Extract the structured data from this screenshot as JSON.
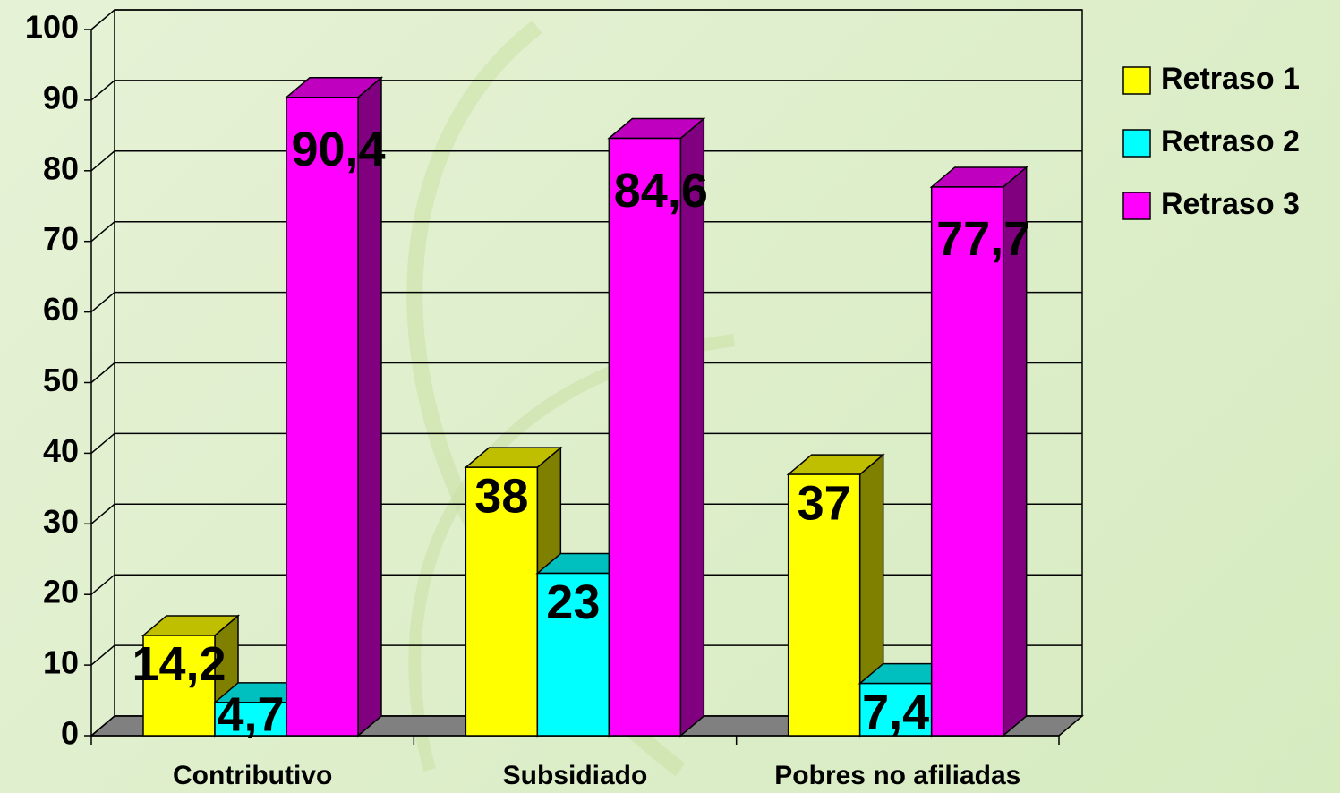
{
  "chart_data": {
    "type": "bar3d",
    "categories": [
      "Contributivo",
      "Subsidiado",
      "Pobres no afiliadas"
    ],
    "series": [
      {
        "name": "Retraso 1",
        "color": "#ffff00",
        "values": [
          14.2,
          38,
          37
        ],
        "value_labels": [
          "14,2",
          "38",
          "37"
        ]
      },
      {
        "name": "Retraso 2",
        "color": "#00ffff",
        "values": [
          4.7,
          23,
          7.4
        ],
        "value_labels": [
          "4,7",
          "23",
          "7,4"
        ]
      },
      {
        "name": "Retraso 3",
        "color": "#ff00ff",
        "values": [
          90.4,
          84.6,
          77.7
        ],
        "value_labels": [
          "90,4",
          "84,6",
          "77,7"
        ]
      }
    ],
    "ylim": [
      0,
      100
    ],
    "yticks": [
      0,
      10,
      20,
      30,
      40,
      50,
      60,
      70,
      80,
      90,
      100
    ],
    "grid": true,
    "legend": "right"
  }
}
